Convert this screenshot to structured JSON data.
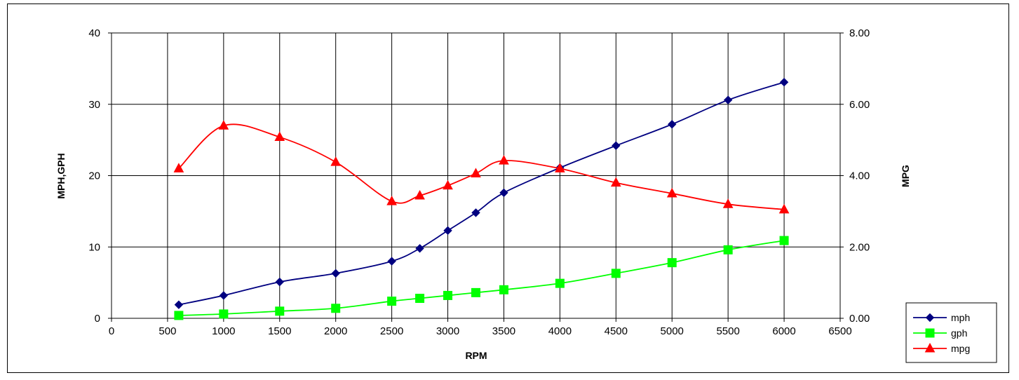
{
  "chart_data": {
    "type": "line",
    "xlabel": "RPM",
    "ylabel": "MPH,GPH",
    "y2label": "MPG",
    "xlim": [
      0,
      6500
    ],
    "ylim": [
      0,
      40
    ],
    "y2lim": [
      0,
      8
    ],
    "x_ticks": [
      0,
      500,
      1000,
      1500,
      2000,
      2500,
      3000,
      3500,
      4000,
      4500,
      5000,
      5500,
      6000,
      6500
    ],
    "x_tick_labels": [
      "0",
      "500",
      "1000",
      "1500",
      "2000",
      "2500",
      "3000",
      "3500",
      "4000",
      "4500",
      "5000",
      "5500",
      "6000",
      "6500"
    ],
    "y_ticks": [
      0,
      10,
      20,
      30,
      40
    ],
    "y_tick_labels": [
      "0",
      "10",
      "20",
      "30",
      "40"
    ],
    "y2_ticks": [
      0,
      2,
      4,
      6,
      8
    ],
    "y2_tick_labels": [
      "0.00",
      "2.00",
      "4.00",
      "6.00",
      "8.00"
    ],
    "grid": "vertical and horizontal",
    "legend_position": "bottom-right",
    "series": [
      {
        "name": "mph",
        "axis": "left",
        "color": "#000080",
        "marker": "diamond",
        "x": [
          600,
          1000,
          1500,
          2000,
          2500,
          2750,
          3000,
          3250,
          3500,
          4000,
          4500,
          5000,
          5500,
          6000
        ],
        "values": [
          1.9,
          3.2,
          5.1,
          6.3,
          8.0,
          9.8,
          12.3,
          14.8,
          17.6,
          21.1,
          24.2,
          27.2,
          30.6,
          33.1
        ]
      },
      {
        "name": "gph",
        "axis": "left",
        "color": "#00ff00",
        "marker": "square",
        "x": [
          600,
          1000,
          1500,
          2000,
          2500,
          2750,
          3000,
          3250,
          3500,
          4000,
          4500,
          5000,
          5500,
          6000
        ],
        "values": [
          0.4,
          0.6,
          1.0,
          1.4,
          2.4,
          2.8,
          3.2,
          3.6,
          4.0,
          4.9,
          6.3,
          7.8,
          9.6,
          10.9
        ]
      },
      {
        "name": "mpg",
        "axis": "right",
        "color": "#ff0000",
        "marker": "triangle",
        "x": [
          600,
          1000,
          1500,
          2000,
          2500,
          2750,
          3000,
          3250,
          3500,
          4000,
          4500,
          5000,
          5500,
          6000
        ],
        "values": [
          4.2,
          5.4,
          5.08,
          4.38,
          3.28,
          3.44,
          3.72,
          4.06,
          4.42,
          4.2,
          3.8,
          3.5,
          3.2,
          3.05
        ]
      }
    ]
  }
}
